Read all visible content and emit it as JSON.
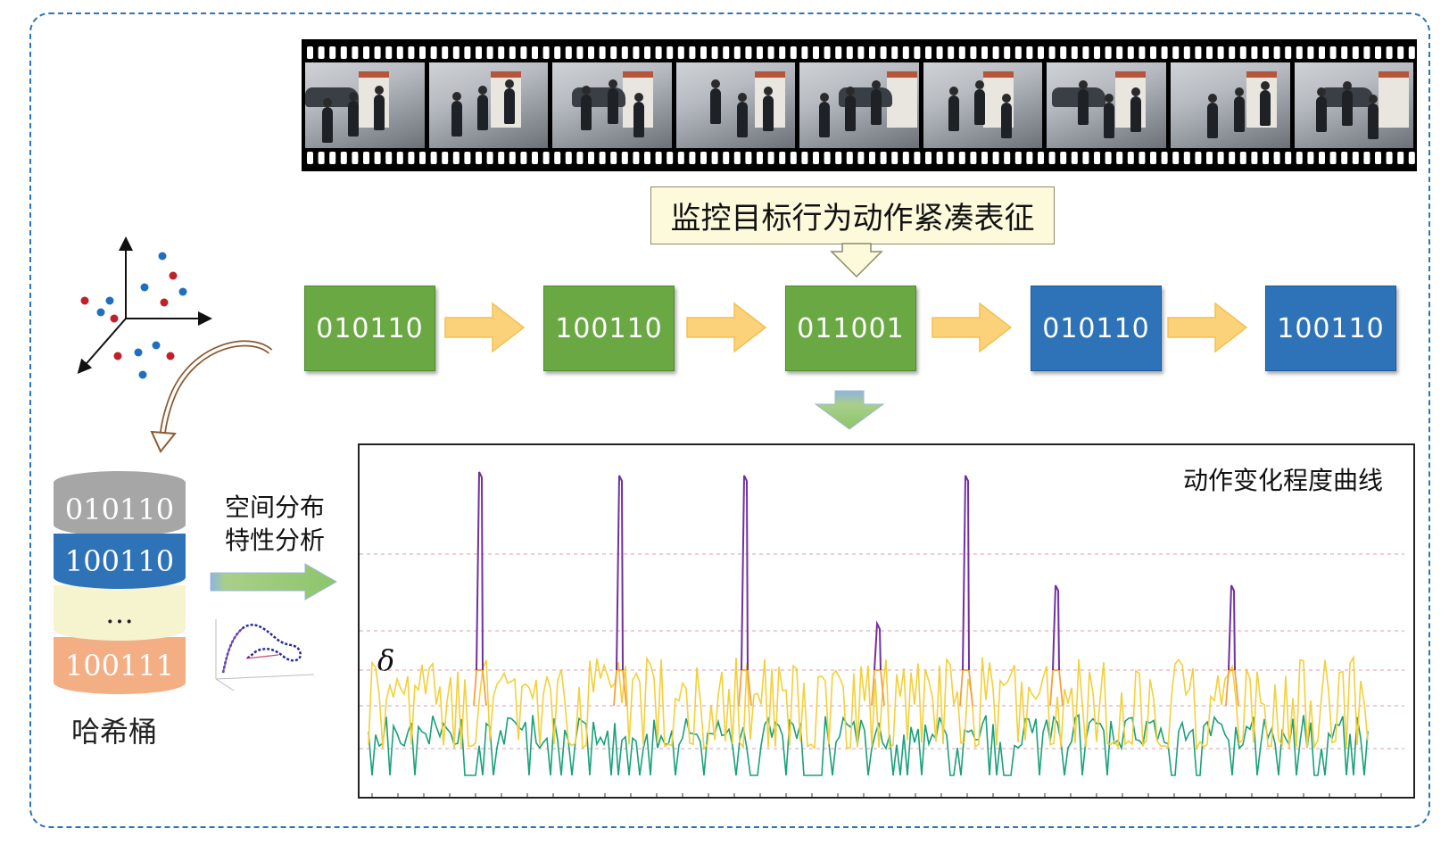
{
  "film_strip": {
    "frame_count": 9
  },
  "callout_label": "监控目标行为动作紧凑表征",
  "codes": [
    {
      "text": "010110",
      "color": "#6aa843"
    },
    {
      "text": "100110",
      "color": "#6aa843"
    },
    {
      "text": "011001",
      "color": "#6aa843"
    },
    {
      "text": "010110",
      "color": "#2e73b8"
    },
    {
      "text": "100110",
      "color": "#2e73b8"
    }
  ],
  "hash_bucket": {
    "label": "哈希桶",
    "segments": [
      "010110",
      "100110",
      "…",
      "100111"
    ],
    "segment_colors": [
      "#a6a6a6",
      "#2e73b8",
      "#f6f3cf",
      "#f4ae84"
    ]
  },
  "spatial_analysis": {
    "line1": "空间分布",
    "line2": "特性分析"
  },
  "chart": {
    "title": "动作变化程度曲线",
    "threshold_label": "δ"
  },
  "colors": {
    "frame_border": "#2e75b6",
    "arrow_fill": "#fbd17a",
    "arrow_stroke": "#f3c150",
    "peak": "#7030a0",
    "mid": "#f4a040",
    "low": "#f2d03a",
    "base": "#1aa07a"
  }
}
